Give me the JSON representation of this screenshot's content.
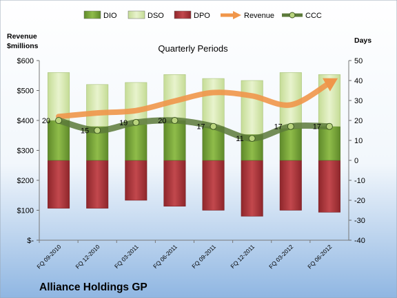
{
  "chart_data": {
    "type": "bar",
    "title": "Quarterly Periods",
    "footer": "Alliance Holdings GP",
    "left_axis_title": "Revenue\n$millions",
    "right_axis_title": "Days",
    "categories": [
      "FQ 09-2010",
      "FQ 12-2010",
      "FQ 03-2011",
      "FQ 06-2011",
      "FQ 09-2011",
      "FQ 12-2011",
      "FQ 03-2012",
      "FQ 06-2012"
    ],
    "left_ticks": [
      "$-",
      "$100",
      "$200",
      "$300",
      "$400",
      "$500",
      "$600"
    ],
    "right_ticks": [
      "-40",
      "-30",
      "-20",
      "-10",
      "0",
      "10",
      "20",
      "30",
      "40",
      "50"
    ],
    "left_range": [
      0,
      600
    ],
    "right_range": [
      -40,
      50
    ],
    "legend_position": "top",
    "series": [
      {
        "name": "DIO",
        "axis": "right",
        "kind": "stacked-bar",
        "color": "#7ea43c",
        "values": [
          20,
          17,
          18,
          20,
          17,
          13,
          16,
          17
        ]
      },
      {
        "name": "DSO",
        "axis": "right",
        "kind": "stacked-bar",
        "color": "#dbeab4",
        "values": [
          24,
          21,
          21,
          23,
          24,
          27,
          28,
          26
        ]
      },
      {
        "name": "DPO",
        "axis": "right",
        "kind": "negative-bar",
        "color": "#b03a3e",
        "values": [
          -24,
          -24,
          -20,
          -23,
          -25,
          -28,
          -25,
          -26
        ]
      },
      {
        "name": "Revenue",
        "axis": "left",
        "kind": "line",
        "color": "#f0964a",
        "values": [
          413,
          425,
          433,
          465,
          493,
          482,
          452,
          525
        ]
      },
      {
        "name": "CCC",
        "axis": "right",
        "kind": "line",
        "color": "#5c7a3a",
        "values": [
          20,
          15,
          19,
          20,
          17,
          11,
          17,
          17
        ],
        "labels": [
          "20",
          "15",
          "19",
          "20",
          "17",
          "11",
          "17",
          "17"
        ]
      }
    ],
    "legend": [
      "DIO",
      "DSO",
      "DPO",
      "Revenue",
      "CCC"
    ]
  }
}
